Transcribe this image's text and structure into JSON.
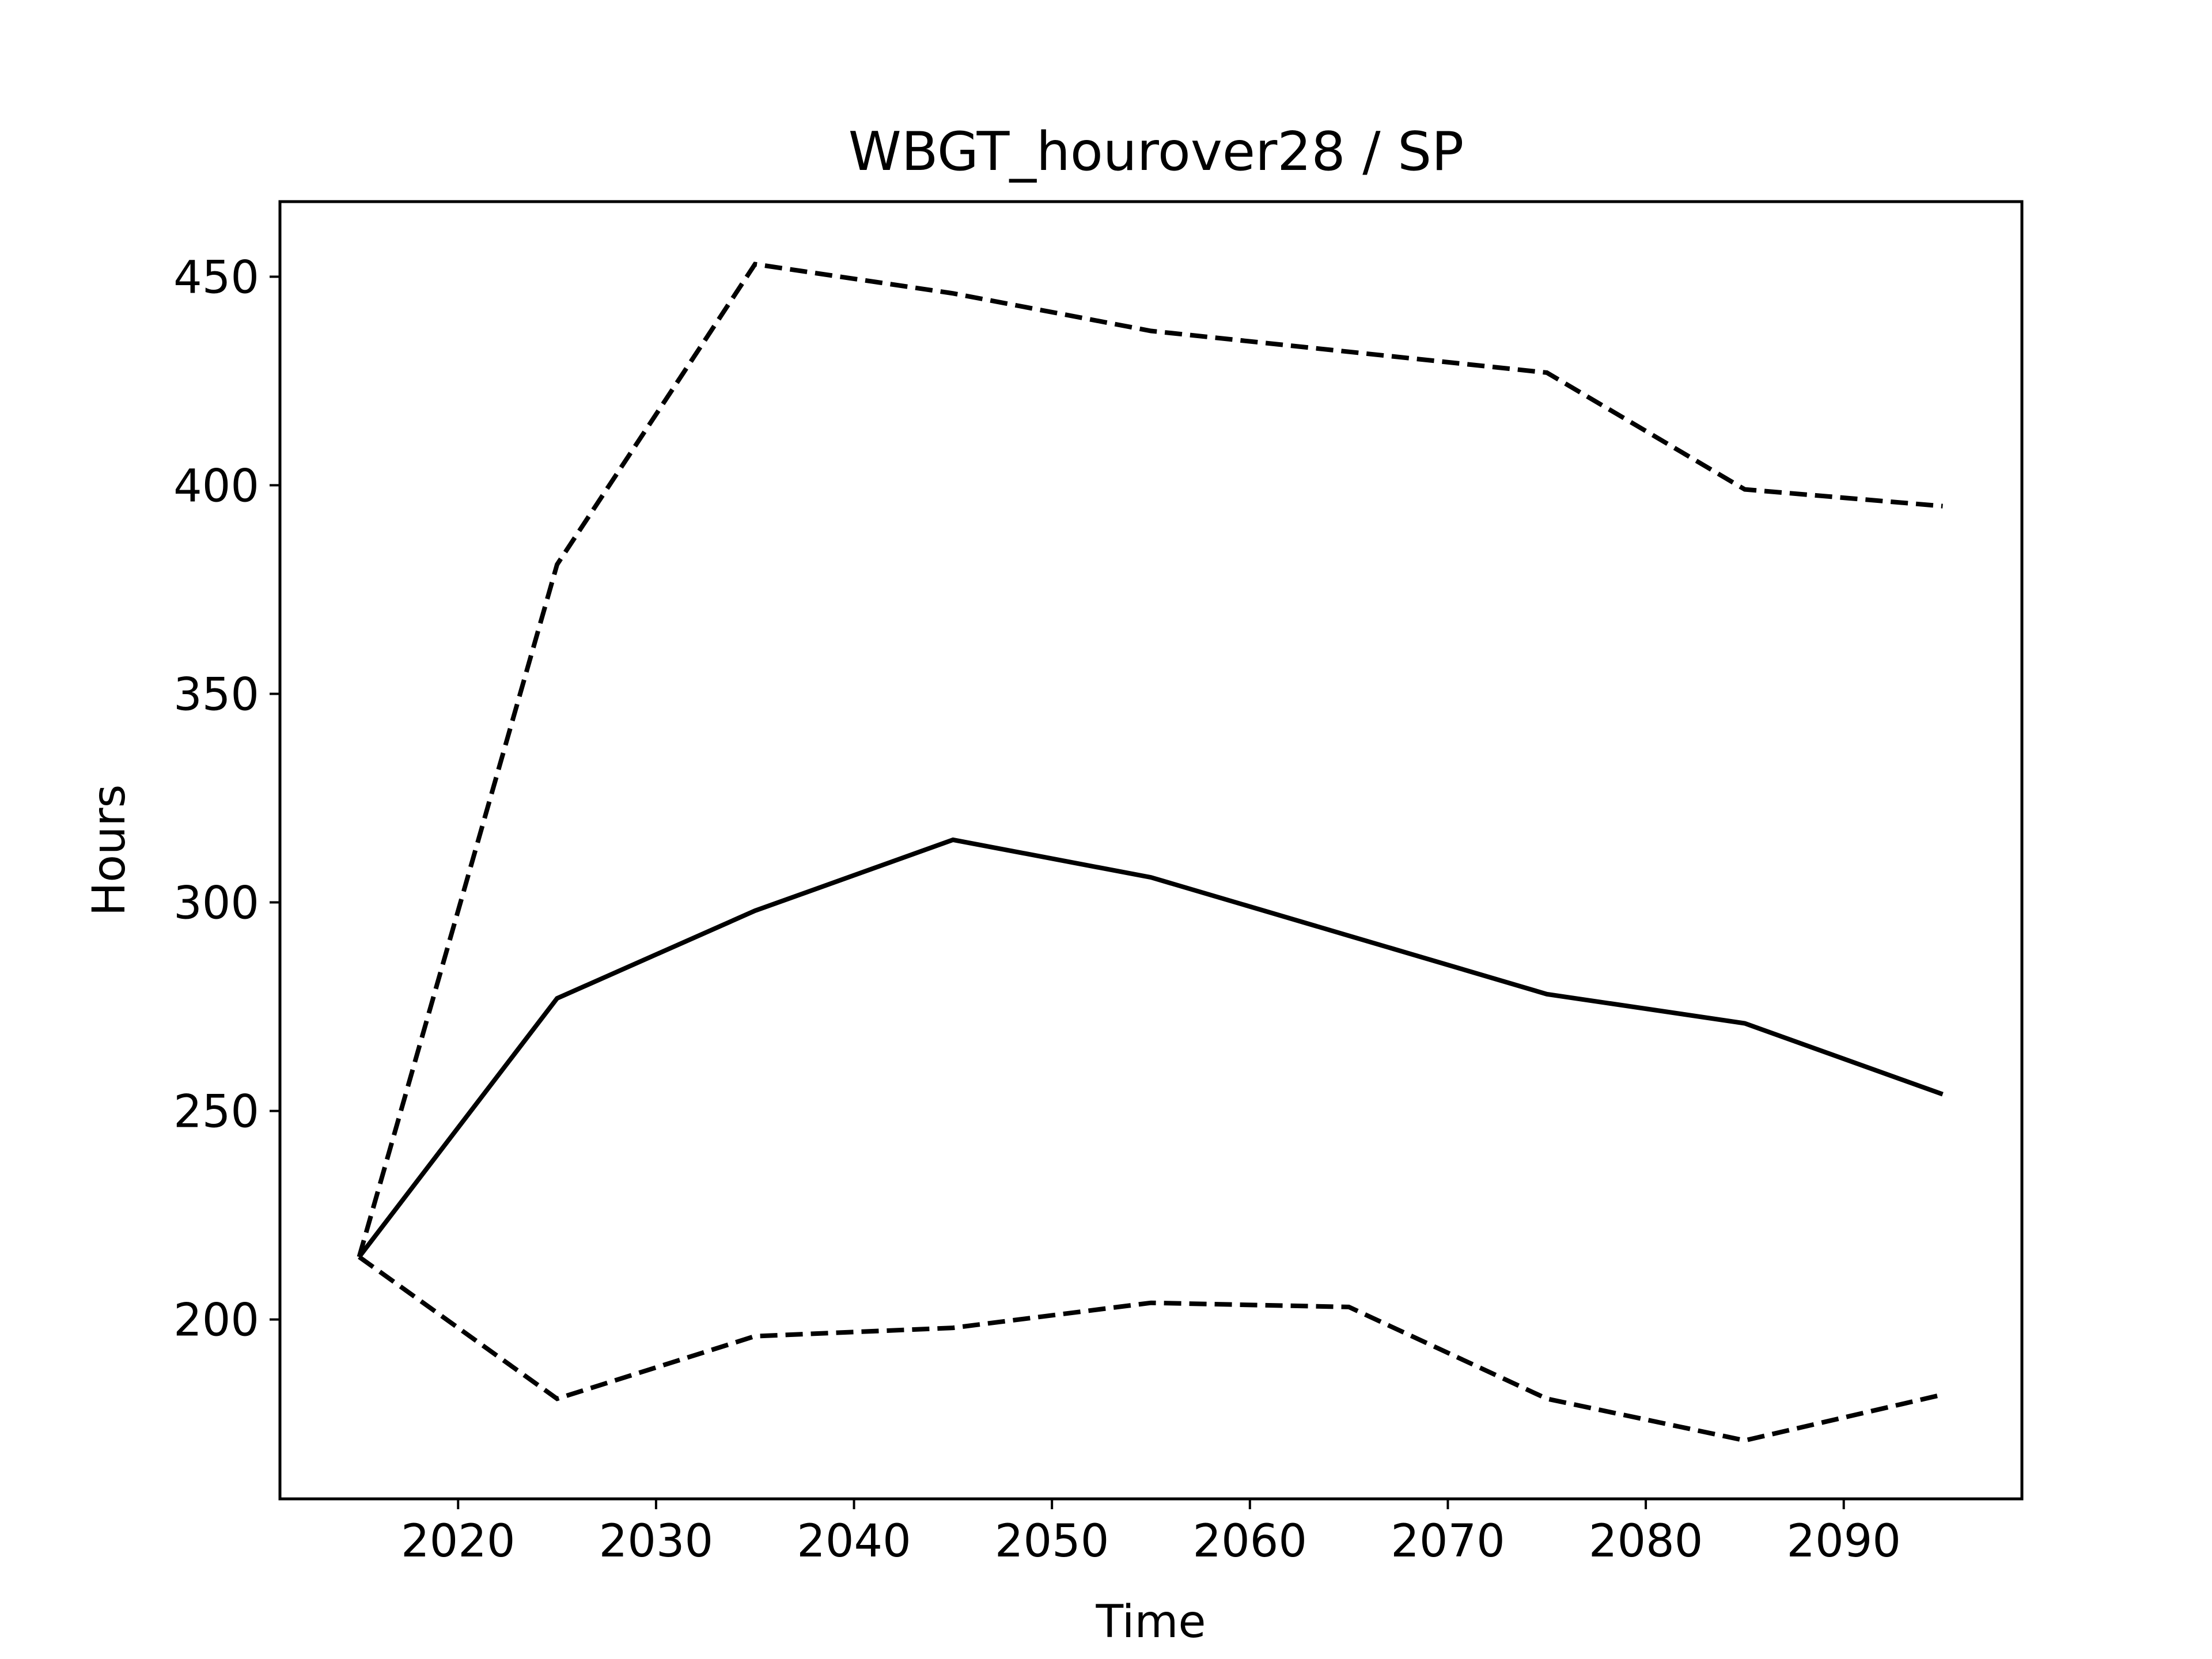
{
  "chart_data": {
    "type": "line",
    "title": "WBGT_hourover28 / SP",
    "xlabel": "Time",
    "ylabel": "Hours",
    "xlim": [
      2011,
      2099
    ],
    "ylim": [
      157,
      468
    ],
    "xticks": [
      2020,
      2030,
      2040,
      2050,
      2060,
      2070,
      2080,
      2090
    ],
    "yticks": [
      200,
      250,
      300,
      350,
      400,
      450
    ],
    "grid": false,
    "legend": "none",
    "x": [
      2015,
      2025,
      2035,
      2045,
      2055,
      2065,
      2075,
      2085,
      2095
    ],
    "series": [
      {
        "style": "dashed",
        "color": "#000000",
        "values": [
          215,
          381,
          453,
          446,
          437,
          432,
          427,
          399,
          395
        ]
      },
      {
        "style": "solid",
        "color": "#000000",
        "values": [
          215,
          277,
          298,
          315,
          306,
          292,
          278,
          271,
          254
        ]
      },
      {
        "style": "dashed",
        "color": "#000000",
        "values": [
          215,
          181,
          196,
          198,
          204,
          203,
          181,
          171,
          182
        ]
      }
    ]
  }
}
